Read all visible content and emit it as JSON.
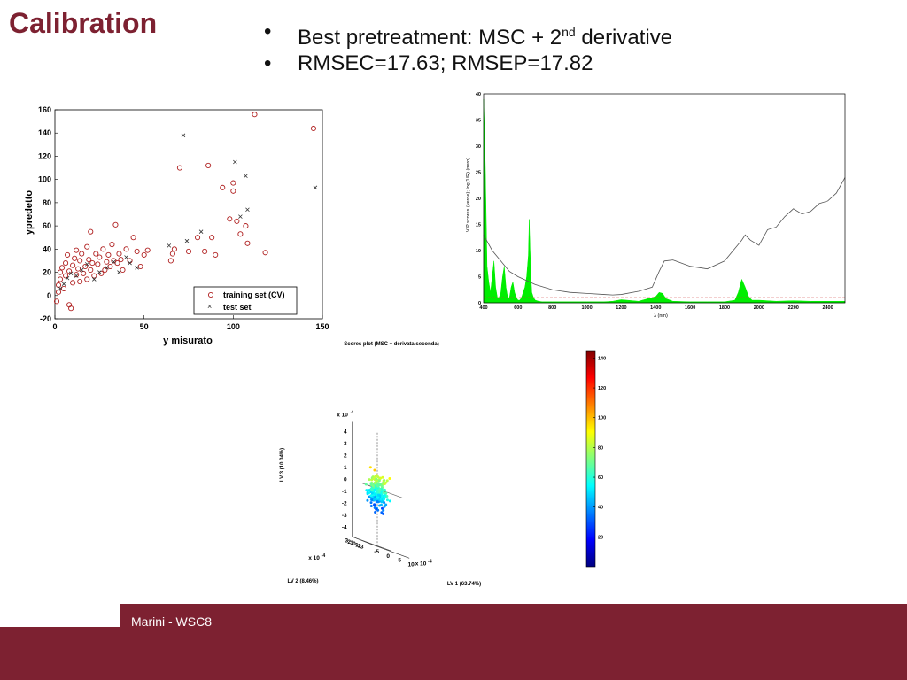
{
  "slide": {
    "title": "Calibration",
    "bullets": [
      {
        "marker": "•",
        "text_pre": "Best pretreatment: MSC + 2",
        "sup": "nd",
        "text_post": " derivative"
      },
      {
        "marker": "•",
        "text_pre": "RMSEC=17.63; RMSEP=17.82",
        "sup": "",
        "text_post": ""
      }
    ],
    "footer": "Marini - WSC8"
  },
  "colors": {
    "accent": "#7d2131",
    "training_marker": "#b02020",
    "test_marker": "#333333",
    "spectrum_fill": "#00ee00"
  },
  "chart_data": [
    {
      "type": "scatter",
      "ylabel": "ypredetto",
      "xlabel": "y misurato",
      "xlim": [
        0,
        150
      ],
      "ylim": [
        -20,
        160
      ],
      "xticks": [
        0,
        50,
        100,
        150
      ],
      "yticks": [
        -20,
        0,
        20,
        40,
        60,
        80,
        100,
        120,
        140,
        160
      ],
      "legend_position": "bottom-right",
      "series": [
        {
          "name": "training set (CV)",
          "marker": "circle",
          "points": [
            [
              1,
              -5
            ],
            [
              2,
              3
            ],
            [
              2,
              9
            ],
            [
              3,
              14
            ],
            [
              3,
              20
            ],
            [
              4,
              24
            ],
            [
              5,
              6
            ],
            [
              6,
              17
            ],
            [
              6,
              28
            ],
            [
              7,
              35
            ],
            [
              8,
              21
            ],
            [
              8,
              -8
            ],
            [
              9,
              -11
            ],
            [
              10,
              11
            ],
            [
              10,
              26
            ],
            [
              11,
              32
            ],
            [
              12,
              18
            ],
            [
              12,
              39
            ],
            [
              13,
              23
            ],
            [
              14,
              12
            ],
            [
              14,
              30
            ],
            [
              15,
              36
            ],
            [
              16,
              19
            ],
            [
              17,
              25
            ],
            [
              18,
              42
            ],
            [
              18,
              14
            ],
            [
              19,
              31
            ],
            [
              20,
              22
            ],
            [
              20,
              55
            ],
            [
              21,
              28
            ],
            [
              22,
              17
            ],
            [
              23,
              36
            ],
            [
              24,
              27
            ],
            [
              25,
              33
            ],
            [
              26,
              19
            ],
            [
              27,
              40
            ],
            [
              28,
              22
            ],
            [
              29,
              29
            ],
            [
              30,
              35
            ],
            [
              31,
              25
            ],
            [
              32,
              44
            ],
            [
              33,
              30
            ],
            [
              34,
              61
            ],
            [
              35,
              28
            ],
            [
              36,
              36
            ],
            [
              37,
              31
            ],
            [
              38,
              22
            ],
            [
              40,
              40
            ],
            [
              42,
              30
            ],
            [
              44,
              50
            ],
            [
              46,
              38
            ],
            [
              48,
              25
            ],
            [
              50,
              35
            ],
            [
              52,
              39
            ],
            [
              65,
              30
            ],
            [
              66,
              36
            ],
            [
              67,
              40
            ],
            [
              70,
              110
            ],
            [
              75,
              38
            ],
            [
              80,
              50
            ],
            [
              84,
              38
            ],
            [
              86,
              112
            ],
            [
              88,
              50
            ],
            [
              90,
              35
            ],
            [
              94,
              93
            ],
            [
              98,
              66
            ],
            [
              100,
              97
            ],
            [
              100,
              90
            ],
            [
              102,
              64
            ],
            [
              104,
              53
            ],
            [
              107,
              60
            ],
            [
              108,
              45
            ],
            [
              112,
              156
            ],
            [
              118,
              37
            ],
            [
              145,
              144
            ]
          ]
        },
        {
          "name": "test set",
          "marker": "x",
          "points": [
            [
              3,
              6
            ],
            [
              5,
              10
            ],
            [
              7,
              15
            ],
            [
              9,
              19
            ],
            [
              12,
              17
            ],
            [
              15,
              22
            ],
            [
              18,
              27
            ],
            [
              22,
              14
            ],
            [
              25,
              20
            ],
            [
              29,
              24
            ],
            [
              33,
              29
            ],
            [
              36,
              20
            ],
            [
              40,
              33
            ],
            [
              42,
              28
            ],
            [
              46,
              24
            ],
            [
              64,
              43
            ],
            [
              72,
              138
            ],
            [
              74,
              47
            ],
            [
              82,
              55
            ],
            [
              101,
              115
            ],
            [
              104,
              68
            ],
            [
              107,
              103
            ],
            [
              108,
              74
            ],
            [
              146,
              93
            ]
          ]
        }
      ]
    },
    {
      "type": "area",
      "ylabel": "VIP scores (verde); log(1/R) (nero)",
      "xlabel": "λ (nm)",
      "xlim": [
        400,
        2500
      ],
      "ylim": [
        0,
        40
      ],
      "xticks": [
        400,
        600,
        800,
        1000,
        1200,
        1400,
        1600,
        1800,
        2000,
        2200,
        2400
      ],
      "yticks": [
        0,
        5,
        10,
        15,
        20,
        25,
        30,
        35,
        40
      ],
      "threshold": 1,
      "series": [
        {
          "name": "VIP",
          "x": [
            400,
            405,
            410,
            420,
            430,
            440,
            450,
            460,
            470,
            480,
            490,
            500,
            510,
            520,
            530,
            540,
            550,
            560,
            570,
            580,
            590,
            600,
            610,
            620,
            630,
            640,
            650,
            660,
            665,
            670,
            675,
            680,
            690,
            700,
            720,
            740,
            800,
            900,
            1000,
            1100,
            1150,
            1200,
            1300,
            1400,
            1420,
            1440,
            1460,
            1500,
            1600,
            1700,
            1800,
            1860,
            1880,
            1900,
            1920,
            1940,
            1960,
            2000,
            2100,
            2200,
            2300,
            2400,
            2500
          ],
          "values": [
            39,
            33,
            26,
            7,
            4,
            2,
            5,
            8,
            3,
            1,
            1,
            2,
            5,
            7,
            3,
            1,
            1,
            3,
            4,
            2,
            1,
            0.5,
            0.5,
            1,
            2,
            3,
            5,
            9,
            16,
            10,
            5,
            2,
            1,
            0.5,
            0.3,
            0.2,
            0.2,
            0.2,
            0.2,
            0.2,
            0.3,
            0.6,
            0.3,
            1.2,
            2,
            1.8,
            0.8,
            0.3,
            0.2,
            0.2,
            0.2,
            0.5,
            2,
            4.5,
            3,
            1.2,
            0.5,
            0.5,
            0.3,
            0.4,
            0.3,
            0.3,
            0.3
          ]
        },
        {
          "name": "log(1/R)",
          "x": [
            400,
            450,
            500,
            550,
            600,
            700,
            800,
            900,
            1000,
            1100,
            1150,
            1200,
            1300,
            1380,
            1420,
            1450,
            1500,
            1600,
            1700,
            1800,
            1850,
            1900,
            1920,
            1950,
            2000,
            2050,
            2100,
            2150,
            2200,
            2250,
            2300,
            2350,
            2400,
            2450,
            2500
          ],
          "values": [
            13,
            10,
            8,
            6,
            5,
            3.5,
            2.5,
            2,
            1.8,
            1.6,
            1.5,
            1.6,
            2.2,
            3,
            6,
            8,
            8.2,
            7,
            6.5,
            8,
            10,
            12,
            13,
            12,
            11,
            14,
            14.5,
            16.5,
            18,
            17,
            17.5,
            19,
            19.5,
            21,
            24
          ]
        }
      ]
    },
    {
      "type": "scatter",
      "title": "Scores plot (MSC + derivata seconda)",
      "xlabel": "LV 1 (63.74%)",
      "ylabel": "LV 2 (8.46%)",
      "zlabel": "LV 3 (10.04%)",
      "exponent_label": "x 10",
      "exponent": "-4",
      "z_ticks": [
        "4",
        "3",
        "2",
        "1",
        "0",
        "-1",
        "-2",
        "-3",
        "-4"
      ],
      "x_ticks": [
        "-5",
        "0",
        "5",
        "10"
      ],
      "y_ticks": [
        "3",
        "2",
        "1",
        "0",
        "-1",
        "-2",
        "-3"
      ],
      "colorbar": {
        "min": 0,
        "max": 145,
        "ticks": [
          20,
          40,
          60,
          80,
          100,
          120,
          140
        ]
      }
    }
  ]
}
